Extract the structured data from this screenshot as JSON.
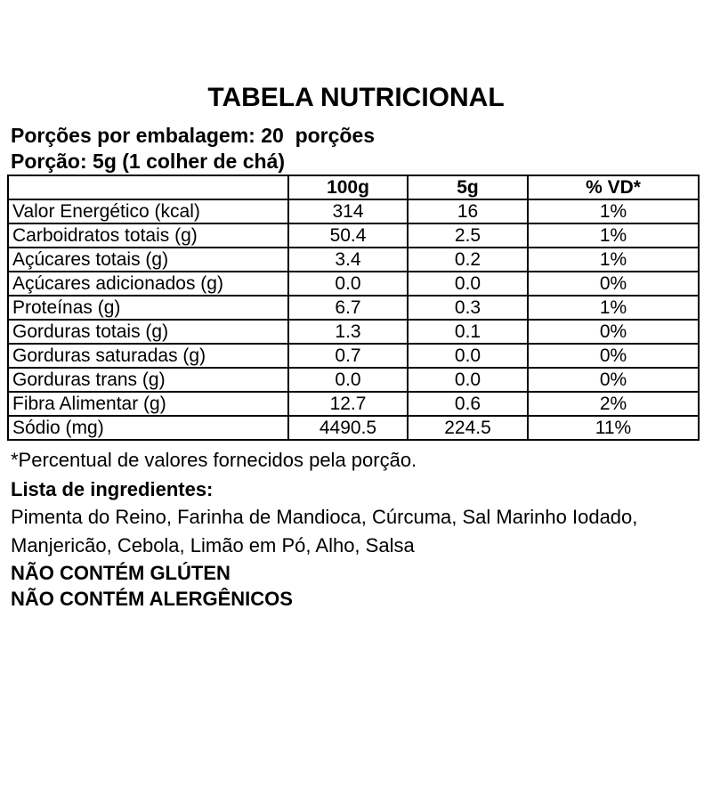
{
  "header": {
    "title": "TABELA NUTRICIONAL",
    "servings_line": "Porções por embalagem: 20  porções",
    "portion_line": "Porção: 5g (1 colher de chá)"
  },
  "table": {
    "columns": [
      "",
      "100g",
      "5g",
      "% VD*"
    ],
    "rows": [
      [
        "Valor Energético (kcal)",
        "314",
        "16",
        "1%"
      ],
      [
        "Carboidratos totais (g)",
        "50.4",
        "2.5",
        "1%"
      ],
      [
        "Açúcares totais (g)",
        "3.4",
        "0.2",
        "1%"
      ],
      [
        "Açúcares adicionados (g)",
        "0.0",
        "0.0",
        "0%"
      ],
      [
        "Proteínas (g)",
        "6.7",
        "0.3",
        "1%"
      ],
      [
        "Gorduras totais (g)",
        "1.3",
        "0.1",
        "0%"
      ],
      [
        "Gorduras saturadas (g)",
        "0.7",
        "0.0",
        "0%"
      ],
      [
        "Gorduras trans (g)",
        "0.0",
        "0.0",
        "0%"
      ],
      [
        "Fibra Alimentar (g)",
        "12.7",
        "0.6",
        "2%"
      ],
      [
        "Sódio (mg)",
        "4490.5",
        "224.5",
        "11%"
      ]
    ]
  },
  "footer": {
    "footnote": "*Percentual de valores fornecidos pela porção.",
    "ingredients_title": "Lista de ingredientes:",
    "ingredients_line1": "Pimenta do Reino, Farinha de Mandioca, Cúrcuma, Sal Marinho Iodado,",
    "ingredients_line2": "Manjericão, Cebola, Limão em Pó, Alho, Salsa",
    "claim_gluten": "NÃO CONTÉM GLÚTEN",
    "claim_allergens": "NÃO CONTÉM ALERGÊNICOS"
  },
  "colors": {
    "text": "#000000",
    "background": "#ffffff",
    "table_border": "#000000"
  }
}
